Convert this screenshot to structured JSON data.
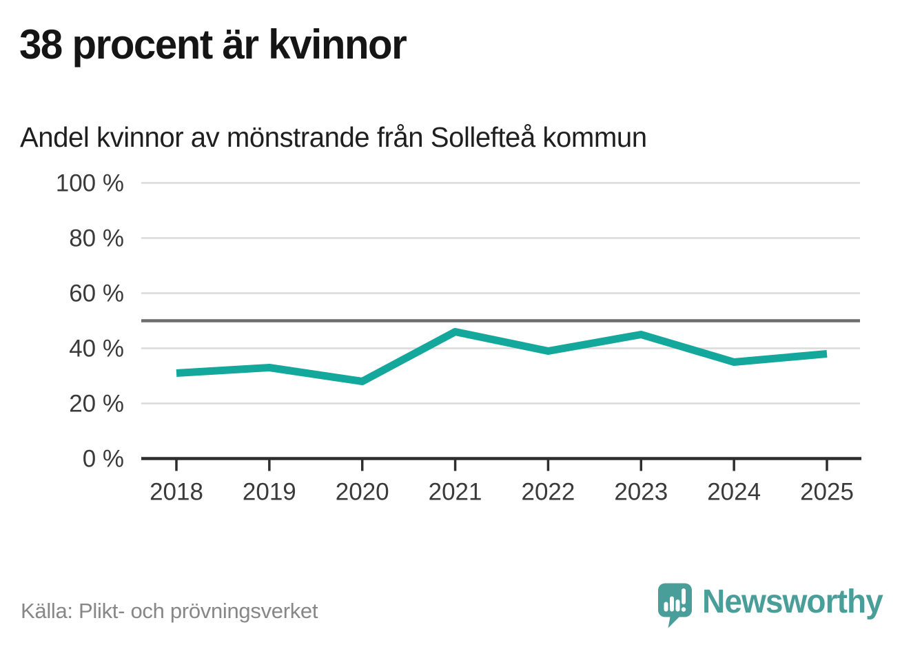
{
  "header": {
    "title": "38 procent är kvinnor",
    "subtitle": "Andel kvinnor av mönstrande från Sollefteå kommun"
  },
  "chart_data": {
    "type": "line",
    "title": "38 procent är kvinnor",
    "subtitle": "Andel kvinnor av mönstrande från Sollefteå kommun",
    "x": [
      "2018",
      "2019",
      "2020",
      "2021",
      "2022",
      "2023",
      "2024",
      "2025"
    ],
    "series": [
      {
        "name": "Andel kvinnor av mönstrande",
        "values": [
          31,
          33,
          28,
          46,
          39,
          45,
          35,
          38
        ]
      }
    ],
    "ylim": [
      0,
      100
    ],
    "yticks": [
      0,
      20,
      40,
      60,
      80,
      100
    ],
    "ytick_suffix": " %",
    "reference_line_y": 50,
    "grid": true,
    "legend": "none",
    "colors": {
      "line": "#14a79b",
      "grid": "#dadada",
      "reference": "#6d6d6d",
      "axis": "#2e2e2e",
      "tick_label": "#3a3a3a"
    }
  },
  "footer": {
    "source": "Källa: Plikt- och prövningsverket",
    "brand": "Newsworthy",
    "brand_color": "#4a9e9a"
  }
}
